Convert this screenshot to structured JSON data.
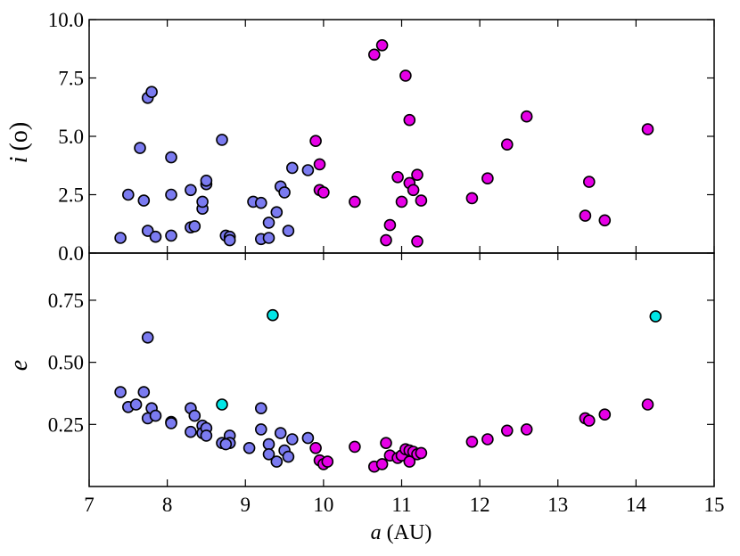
{
  "chart_data": [
    {
      "type": "scatter",
      "panel": "top",
      "ylabel_symbol": "i",
      "ylabel_unit": "(o)",
      "ylim": [
        0,
        10
      ],
      "yticks": [
        "0.0",
        "2.5",
        "5.0",
        "7.5",
        "10.0"
      ],
      "ytick_values": [
        0,
        2.5,
        5,
        7.5,
        10
      ],
      "xlim": [
        7,
        15
      ],
      "grid": false,
      "series": [
        {
          "color": "#7b7bf0",
          "points": [
            [
              7.4,
              0.65
            ],
            [
              7.5,
              2.5
            ],
            [
              7.65,
              4.5
            ],
            [
              7.7,
              2.25
            ],
            [
              7.75,
              6.65
            ],
            [
              7.8,
              6.9
            ],
            [
              7.75,
              0.95
            ],
            [
              7.85,
              0.7
            ],
            [
              8.05,
              0.75
            ],
            [
              8.05,
              2.5
            ],
            [
              8.05,
              4.1
            ],
            [
              8.3,
              1.1
            ],
            [
              8.3,
              2.7
            ],
            [
              8.35,
              1.15
            ],
            [
              8.45,
              1.9
            ],
            [
              8.45,
              2.2
            ],
            [
              8.5,
              2.95
            ],
            [
              8.5,
              3.1
            ],
            [
              8.7,
              4.85
            ],
            [
              8.75,
              0.75
            ],
            [
              8.8,
              0.7
            ],
            [
              8.8,
              0.55
            ],
            [
              9.1,
              2.2
            ],
            [
              9.2,
              2.15
            ],
            [
              9.2,
              0.6
            ],
            [
              9.3,
              0.65
            ],
            [
              9.3,
              1.3
            ],
            [
              9.4,
              1.75
            ],
            [
              9.45,
              2.85
            ],
            [
              9.5,
              2.6
            ],
            [
              9.55,
              0.95
            ],
            [
              9.6,
              3.65
            ],
            [
              9.8,
              3.55
            ]
          ]
        },
        {
          "color": "#e600e6",
          "points": [
            [
              9.9,
              4.8
            ],
            [
              9.95,
              2.7
            ],
            [
              9.95,
              3.8
            ],
            [
              10.0,
              2.6
            ],
            [
              10.4,
              2.2
            ],
            [
              10.65,
              8.5
            ],
            [
              10.75,
              8.9
            ],
            [
              10.8,
              0.55
            ],
            [
              10.85,
              1.2
            ],
            [
              10.95,
              3.25
            ],
            [
              11.0,
              2.2
            ],
            [
              11.05,
              7.6
            ],
            [
              11.1,
              5.7
            ],
            [
              11.1,
              3.0
            ],
            [
              11.15,
              2.7
            ],
            [
              11.2,
              3.35
            ],
            [
              11.2,
              0.5
            ],
            [
              11.25,
              2.25
            ],
            [
              11.9,
              2.35
            ],
            [
              12.1,
              3.2
            ],
            [
              12.35,
              4.65
            ],
            [
              12.6,
              5.85
            ],
            [
              13.35,
              1.6
            ],
            [
              13.4,
              3.05
            ],
            [
              13.6,
              1.4
            ],
            [
              14.15,
              5.3
            ]
          ]
        }
      ]
    },
    {
      "type": "scatter",
      "panel": "bottom",
      "ylabel": "e",
      "xlabel_symbol": "a",
      "xlabel_unit": "(AU)",
      "ylim": [
        0,
        0.94
      ],
      "yticks": [
        "0.25",
        "0.50",
        "0.75"
      ],
      "ytick_values": [
        0.25,
        0.5,
        0.75
      ],
      "xlim": [
        7,
        15
      ],
      "xticks": [
        "7",
        "8",
        "9",
        "10",
        "11",
        "12",
        "13",
        "14",
        "15"
      ],
      "xtick_values": [
        7,
        8,
        9,
        10,
        11,
        12,
        13,
        14,
        15
      ],
      "grid": false,
      "series": [
        {
          "color": "#7b7bf0",
          "points": [
            [
              7.4,
              0.38
            ],
            [
              7.5,
              0.32
            ],
            [
              7.6,
              0.33
            ],
            [
              7.7,
              0.38
            ],
            [
              7.75,
              0.275
            ],
            [
              7.75,
              0.6
            ],
            [
              7.8,
              0.315
            ],
            [
              7.85,
              0.285
            ],
            [
              8.05,
              0.26
            ],
            [
              8.05,
              0.255
            ],
            [
              8.3,
              0.315
            ],
            [
              8.3,
              0.22
            ],
            [
              8.35,
              0.285
            ],
            [
              8.45,
              0.245
            ],
            [
              8.45,
              0.215
            ],
            [
              8.5,
              0.235
            ],
            [
              8.5,
              0.205
            ],
            [
              8.7,
              0.175
            ],
            [
              8.8,
              0.205
            ],
            [
              8.8,
              0.175
            ],
            [
              8.75,
              0.17
            ],
            [
              9.05,
              0.155
            ],
            [
              9.2,
              0.23
            ],
            [
              9.2,
              0.315
            ],
            [
              9.3,
              0.17
            ],
            [
              9.3,
              0.13
            ],
            [
              9.4,
              0.1
            ],
            [
              9.45,
              0.215
            ],
            [
              9.5,
              0.145
            ],
            [
              9.55,
              0.12
            ],
            [
              9.6,
              0.19
            ],
            [
              9.8,
              0.195
            ]
          ]
        },
        {
          "color": "#e600e6",
          "points": [
            [
              9.9,
              0.155
            ],
            [
              9.95,
              0.105
            ],
            [
              10.0,
              0.09
            ],
            [
              10.05,
              0.1
            ],
            [
              10.4,
              0.16
            ],
            [
              10.65,
              0.08
            ],
            [
              10.75,
              0.09
            ],
            [
              10.8,
              0.175
            ],
            [
              10.85,
              0.125
            ],
            [
              10.95,
              0.115
            ],
            [
              11.0,
              0.125
            ],
            [
              11.05,
              0.15
            ],
            [
              11.1,
              0.1
            ],
            [
              11.1,
              0.145
            ],
            [
              11.15,
              0.14
            ],
            [
              11.2,
              0.13
            ],
            [
              11.25,
              0.135
            ],
            [
              11.9,
              0.18
            ],
            [
              12.1,
              0.19
            ],
            [
              12.35,
              0.225
            ],
            [
              12.6,
              0.23
            ],
            [
              13.35,
              0.275
            ],
            [
              13.4,
              0.265
            ],
            [
              13.6,
              0.29
            ],
            [
              14.15,
              0.33
            ]
          ]
        },
        {
          "color": "#00e6e6",
          "points": [
            [
              8.7,
              0.33
            ],
            [
              9.35,
              0.69
            ],
            [
              14.25,
              0.685
            ]
          ]
        }
      ]
    }
  ]
}
